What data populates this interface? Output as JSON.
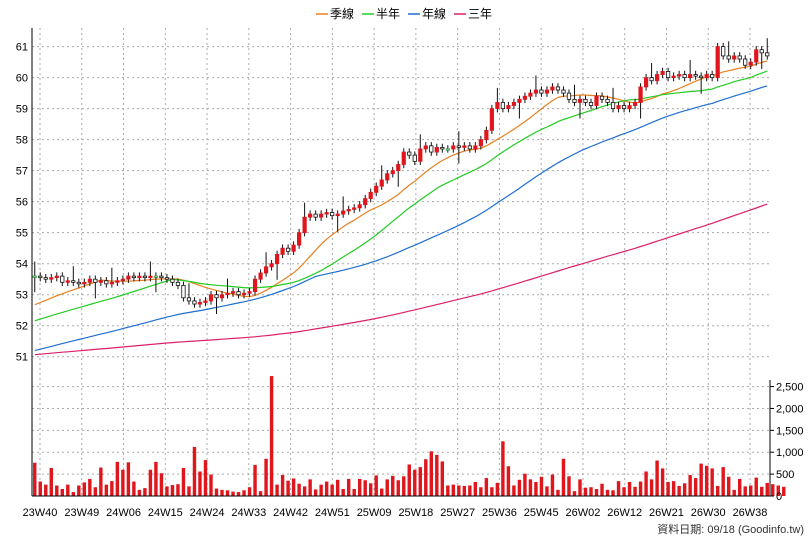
{
  "chart_data": {
    "type": "candlestick",
    "legend": [
      {
        "name": "季線",
        "color": "#e8801e"
      },
      {
        "name": "半年",
        "color": "#22cc22"
      },
      {
        "name": "年線",
        "color": "#1f6fd0"
      },
      {
        "name": "三年",
        "color": "#dd1f6a"
      }
    ],
    "price_axis": {
      "ylim": [
        50.25,
        61.6
      ],
      "ticks": [
        51,
        52,
        53,
        54,
        55,
        56,
        57,
        58,
        59,
        60,
        61
      ],
      "position": "left"
    },
    "volume_axis": {
      "ylim": [
        0,
        2650
      ],
      "ticks": [
        0,
        500,
        1000,
        1500,
        2000,
        2500
      ],
      "tick_labels": [
        "0",
        "500",
        "1,000",
        "1,500",
        "2,000",
        "2,500"
      ],
      "position": "right"
    },
    "x_tick_labels": [
      "23W40",
      "23W49",
      "24W06",
      "24W15",
      "24W24",
      "24W33",
      "24W42",
      "24W51",
      "25W09",
      "25W18",
      "25W27",
      "25W36",
      "25W45",
      "26W02",
      "26W12",
      "26W21",
      "26W30",
      "26W38"
    ],
    "grid": true,
    "up_color": "#e0161d",
    "down_color": "#111111",
    "flat_color": "#18a02a",
    "close_series": [
      53.6,
      53.55,
      53.5,
      53.55,
      53.6,
      53.4,
      53.45,
      53.4,
      53.35,
      53.4,
      53.5,
      53.4,
      53.45,
      53.35,
      53.4,
      53.45,
      53.5,
      53.6,
      53.55,
      53.6,
      53.55,
      53.6,
      53.6,
      53.55,
      53.5,
      53.4,
      53.3,
      52.9,
      52.8,
      52.7,
      52.75,
      52.8,
      53.0,
      52.9,
      53.0,
      53.05,
      53.1,
      53.0,
      53.05,
      53.1,
      53.5,
      53.7,
      53.9,
      54.0,
      54.3,
      54.5,
      54.4,
      54.6,
      55.0,
      55.5,
      55.6,
      55.5,
      55.6,
      55.65,
      55.55,
      55.6,
      55.7,
      55.75,
      55.8,
      55.9,
      56.1,
      56.3,
      56.5,
      56.7,
      56.9,
      57.0,
      57.2,
      57.6,
      57.5,
      57.3,
      57.7,
      57.8,
      57.6,
      57.75,
      57.7,
      57.7,
      57.8,
      57.75,
      57.8,
      57.7,
      57.8,
      58.0,
      58.3,
      59.0,
      59.2,
      59.0,
      59.1,
      59.2,
      59.3,
      59.4,
      59.5,
      59.6,
      59.5,
      59.6,
      59.7,
      59.6,
      59.5,
      59.3,
      59.2,
      59.3,
      59.2,
      59.1,
      59.4,
      59.3,
      59.2,
      59.0,
      59.1,
      59.0,
      59.1,
      59.2,
      59.7,
      60.0,
      59.9,
      60.1,
      60.2,
      60.0,
      60.05,
      60.1,
      60.0,
      60.1,
      60.05,
      60.0,
      60.1,
      60.0,
      61.0,
      60.7,
      60.6,
      60.7,
      60.6,
      60.4,
      60.5,
      60.9,
      60.8,
      60.7
    ],
    "volume": [
      760,
      330,
      260,
      640,
      240,
      160,
      260,
      90,
      240,
      310,
      390,
      200,
      650,
      260,
      340,
      780,
      600,
      770,
      330,
      140,
      180,
      600,
      780,
      520,
      220,
      250,
      270,
      640,
      220,
      1120,
      560,
      820,
      490,
      170,
      140,
      130,
      100,
      90,
      130,
      200,
      710,
      110,
      850,
      2740,
      260,
      480,
      350,
      400,
      280,
      220,
      380,
      150,
      260,
      330,
      260,
      370,
      160,
      390,
      160,
      390,
      360,
      290,
      470,
      170,
      380,
      460,
      360,
      450,
      720,
      600,
      660,
      840,
      1020,
      940,
      790,
      240,
      260,
      240,
      230,
      240,
      320,
      200,
      410,
      200,
      300,
      1250,
      680,
      240,
      370,
      510,
      380,
      320,
      440,
      220,
      490,
      140,
      850,
      450,
      110,
      380,
      190,
      200,
      160,
      280,
      140,
      130,
      340,
      200,
      320,
      210,
      330,
      560,
      380,
      810,
      630,
      320,
      340,
      230,
      290,
      480,
      410,
      740,
      690,
      630,
      230,
      660,
      440,
      140,
      390,
      220,
      240,
      420,
      210,
      300,
      270,
      240,
      210
    ]
  },
  "credit": "資料日期: 09/18  (Goodinfo.tw)"
}
